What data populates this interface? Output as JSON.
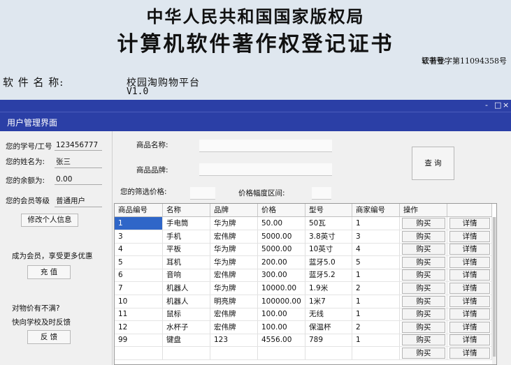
{
  "certificate": {
    "title_line1": "中华人民共和国国家版权局",
    "title_line2": "计算机软件著作权登记证书",
    "cert_no_label": "证书号:",
    "cert_no_value": "软著登字第11094358号",
    "software_name_label": "软 件 名 称:",
    "software_name": "校园淘购物平台",
    "software_version": "V1.0"
  },
  "window": {
    "title": "用户管理界面",
    "controls": [
      "-",
      "□",
      "×"
    ]
  },
  "left_panel": {
    "id_label": "您的学号/工号",
    "id_value": "123456777",
    "name_label": "您的姓名为:",
    "name_value": "张三",
    "balance_label": "您的余额为:",
    "balance_value": "0.00",
    "level_label": "您的会员等级",
    "level_value": "普通用户",
    "edit_button": "修改个人信息",
    "promo_text": "成为会员，享受更多优惠",
    "recharge_button": "充 值",
    "complaint_line1": "对物价有不满?",
    "complaint_line2": "快向学校及时反馈",
    "feedback_button": "反 馈"
  },
  "search": {
    "product_name_label": "商品名称:",
    "product_name_value": "",
    "brand_label": "商品品牌:",
    "brand_value": "",
    "query_button": "查 询",
    "price_label": "您的筛选价格:",
    "price_value": "",
    "range_label": "价格幅度区间:",
    "range_value": ""
  },
  "table": {
    "headers": [
      "商品编号",
      "名称",
      "品牌",
      "价格",
      "型号",
      "商家编号",
      "操作",
      ""
    ],
    "buy_label": "购买",
    "detail_label": "详情",
    "rows": [
      {
        "id": "1",
        "name": "手电筒",
        "brand": "华为牌",
        "price": "50.00",
        "model": "50瓦",
        "merchant": "1"
      },
      {
        "id": "3",
        "name": "手机",
        "brand": "宏伟牌",
        "price": "5000.00",
        "model": "3.8英寸",
        "merchant": "3"
      },
      {
        "id": "4",
        "name": "平板",
        "brand": "华为牌",
        "price": "5000.00",
        "model": "10英寸",
        "merchant": "4"
      },
      {
        "id": "5",
        "name": "耳机",
        "brand": "华为牌",
        "price": "200.00",
        "model": "蓝牙5.0",
        "merchant": "5"
      },
      {
        "id": "6",
        "name": "音响",
        "brand": "宏伟牌",
        "price": "300.00",
        "model": "蓝牙5.2",
        "merchant": "1"
      },
      {
        "id": "7",
        "name": "机器人",
        "brand": "华为牌",
        "price": "10000.00",
        "model": "1.9米",
        "merchant": "2"
      },
      {
        "id": "10",
        "name": "机器人",
        "brand": "明亮牌",
        "price": "100000.00",
        "model": "1米7",
        "merchant": "1"
      },
      {
        "id": "11",
        "name": "鼠标",
        "brand": "宏伟牌",
        "price": "100.00",
        "model": "无线",
        "merchant": "1"
      },
      {
        "id": "12",
        "name": "水杯子",
        "brand": "宏伟牌",
        "price": "100.00",
        "model": "保温杯",
        "merchant": "2"
      },
      {
        "id": "99",
        "name": "键盘",
        "brand": "123",
        "price": "4556.00",
        "model": "789",
        "merchant": "1"
      },
      {
        "id": "",
        "name": "",
        "brand": "",
        "price": "",
        "model": "",
        "merchant": ""
      }
    ]
  },
  "colors": {
    "titlebar": "#2b3fa6",
    "selection": "#2f66c8",
    "certificate_bg": "#dfe7ef"
  }
}
